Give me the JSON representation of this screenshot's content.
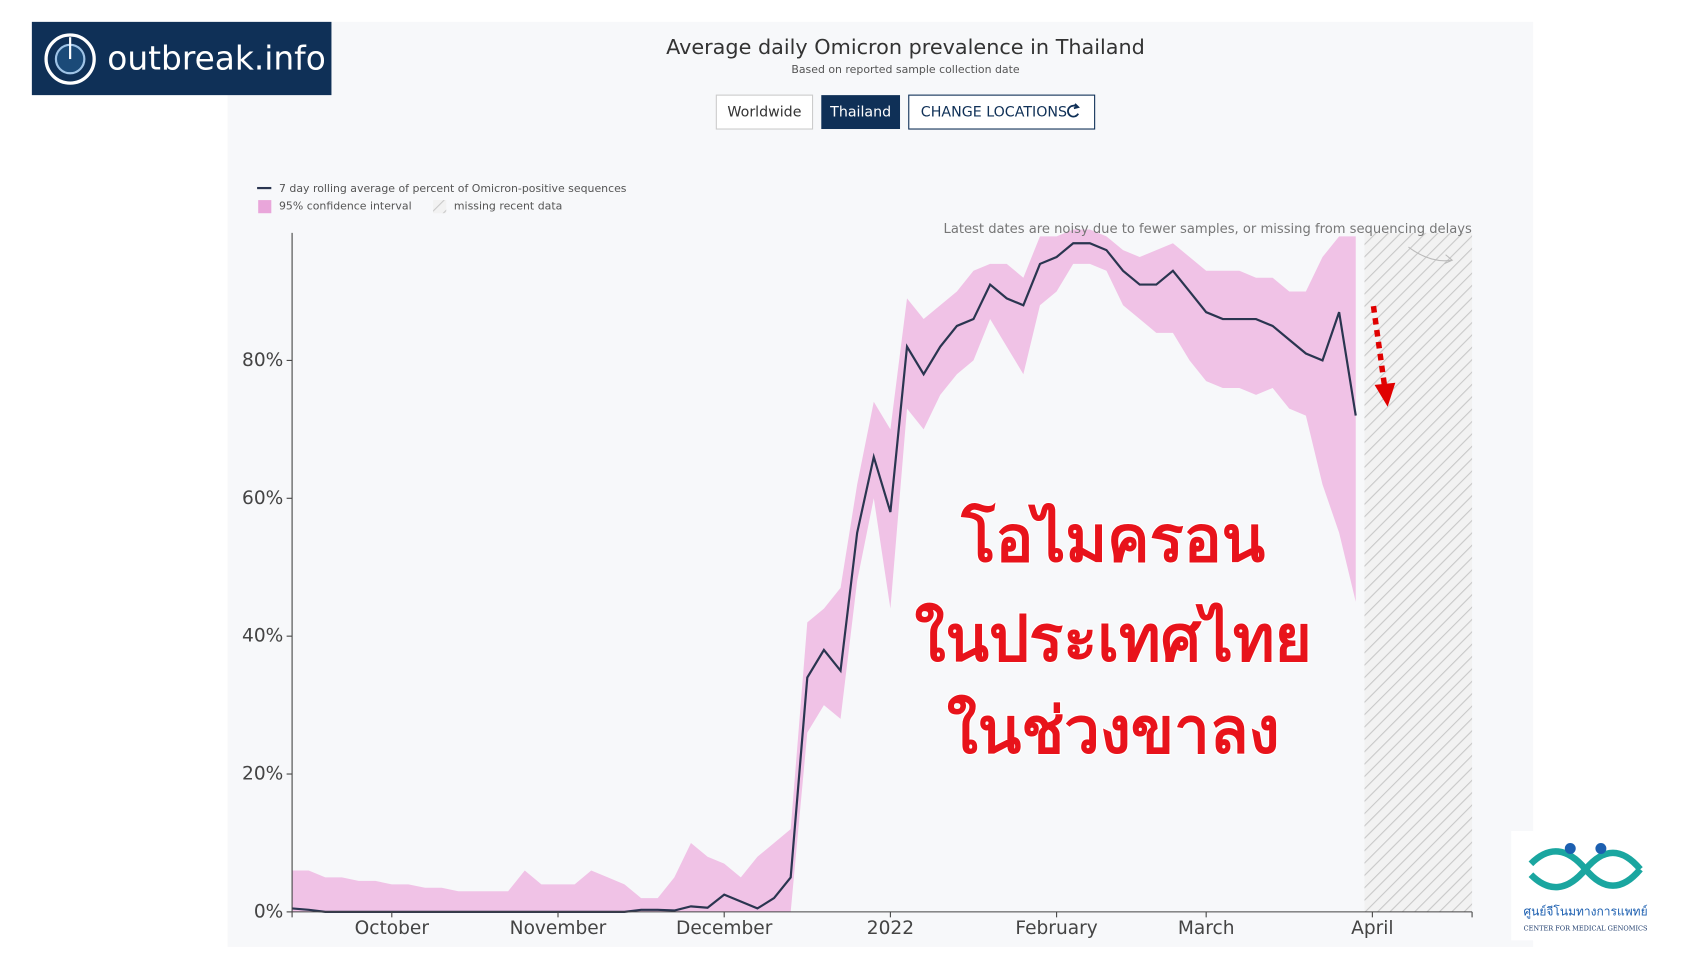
{
  "logo": "outbreak.info",
  "buttons": [
    "Worldwide",
    "Thailand",
    "CHANGE LOCATIONS"
  ],
  "overlay_text": [
    "โอไมครอน",
    "ในประเทศไทย",
    "ในช่วงขาลง"
  ],
  "footer_logo": {
    "name": "ศูนย์จีโนมทางการแพทย์",
    "subtitle": "CENTER FOR MEDICAL GENOMICS"
  },
  "chart_data": {
    "type": "line",
    "title": "Average daily Omicron prevalence in Thailand",
    "subtitle": "Based on reported sample collection date",
    "annotation": "Latest dates are noisy due to fewer samples, or missing from sequencing delays",
    "missing_data_label": "missing recent data",
    "categories": [
      null,
      null,
      null,
      null,
      null,
      null,
      "October",
      null,
      null,
      null,
      null,
      null,
      null,
      null,
      null,
      null,
      "November",
      null,
      null,
      null,
      null,
      null,
      null,
      null,
      null,
      null,
      "December",
      null,
      null,
      null,
      null,
      null,
      null,
      null,
      null,
      null,
      "2022",
      null,
      null,
      null,
      null,
      null,
      null,
      null,
      null,
      null,
      "February",
      null,
      null,
      null,
      null,
      null,
      null,
      null,
      null,
      "March",
      null,
      null,
      null,
      null,
      null,
      null,
      null,
      null,
      null,
      "April",
      null,
      null,
      null,
      null,
      null,
      null
    ],
    "series": [
      {
        "name": "7 day rolling average of percent of Omicron-positive sequences",
        "color": "#2a3550",
        "values": [
          0.5,
          0.3,
          0,
          0,
          0,
          0,
          0,
          0,
          0,
          0,
          0,
          0,
          0,
          0,
          0,
          0,
          0,
          0,
          0,
          0,
          0,
          0.3,
          0.3,
          0.2,
          0.8,
          0.6,
          2.5,
          1.5,
          0.5,
          2,
          5,
          34,
          38,
          35,
          55,
          66,
          58,
          82,
          78,
          82,
          85,
          86,
          91,
          89,
          88,
          94,
          95,
          97,
          97,
          96,
          93,
          91,
          91,
          93,
          90,
          87,
          86,
          86,
          86,
          85,
          83,
          81,
          80,
          87,
          72,
          null,
          null,
          null,
          null,
          null,
          null,
          null
        ]
      }
    ],
    "band": {
      "name": "95% confidence interval",
      "color": "#f0c2e6",
      "lower": [
        0,
        0,
        0,
        0,
        0,
        0,
        0,
        0,
        0,
        0,
        0,
        0,
        0,
        0,
        0,
        0,
        0,
        0,
        0,
        0,
        0,
        0,
        0,
        0,
        0,
        0,
        0,
        0,
        0,
        0,
        0,
        26,
        30,
        28,
        48,
        60,
        44,
        73,
        70,
        75,
        78,
        80,
        86,
        82,
        78,
        88,
        90,
        94,
        94,
        93,
        88,
        86,
        84,
        84,
        80,
        77,
        76,
        76,
        75,
        76,
        73,
        72,
        62,
        55,
        45,
        null,
        null,
        null,
        null,
        null,
        null,
        null
      ],
      "upper": [
        6,
        6,
        5,
        5,
        4.5,
        4.5,
        4,
        4,
        3.5,
        3.5,
        3,
        3,
        3,
        3,
        6,
        4,
        4,
        4,
        6,
        5,
        4,
        2,
        2,
        5,
        10,
        8,
        7,
        5,
        8,
        10,
        12,
        42,
        44,
        47,
        62,
        74,
        70,
        89,
        86,
        88,
        90,
        93,
        94,
        94,
        92,
        98,
        98,
        99,
        99,
        98,
        96,
        95,
        96,
        97,
        95,
        93,
        93,
        93,
        92,
        92,
        90,
        90,
        95,
        98,
        98,
        null,
        null,
        null,
        null,
        null,
        null,
        null
      ]
    },
    "ylim": [
      0,
      98.5
    ],
    "yticks": [
      {
        "value": 0,
        "label": "0%"
      },
      {
        "value": 20,
        "label": "20%"
      },
      {
        "value": 40,
        "label": "40%"
      },
      {
        "value": 60,
        "label": "60%"
      },
      {
        "value": 80,
        "label": "80%"
      }
    ],
    "grid": false
  }
}
